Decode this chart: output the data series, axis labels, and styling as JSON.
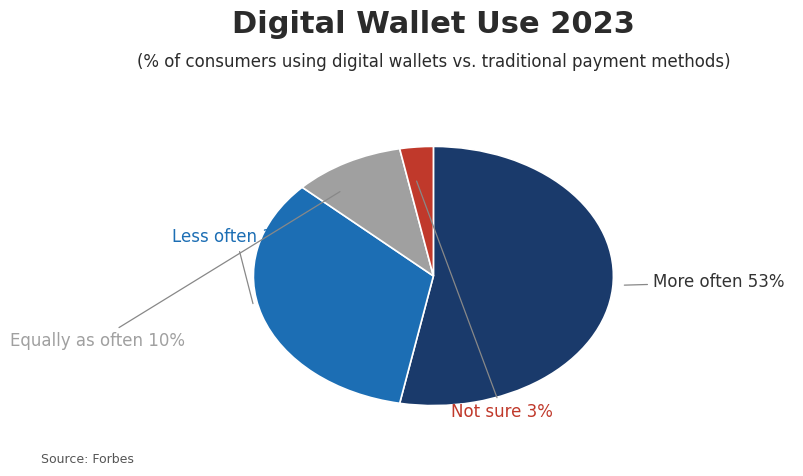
{
  "title": "Digital Wallet Use 2023",
  "subtitle": "(% of consumers using digital wallets vs. traditional payment methods)",
  "source": "Source: Forbes",
  "slices": [
    53,
    34,
    10,
    3
  ],
  "labels": [
    "More often 53%",
    "Less often 34%",
    "Equally as often 10%",
    "Not sure 3%"
  ],
  "colors": [
    "#1a3a6b",
    "#1c6eb4",
    "#a0a0a0",
    "#c0392b"
  ],
  "label_colors": [
    "#333333",
    "#1c6eb4",
    "#a0a0a0",
    "#c0392b"
  ],
  "startangle": 90,
  "background_color": "#ffffff",
  "title_fontsize": 22,
  "subtitle_fontsize": 12,
  "label_fontsize": 12,
  "source_fontsize": 9,
  "aspect_ratio": 0.72
}
